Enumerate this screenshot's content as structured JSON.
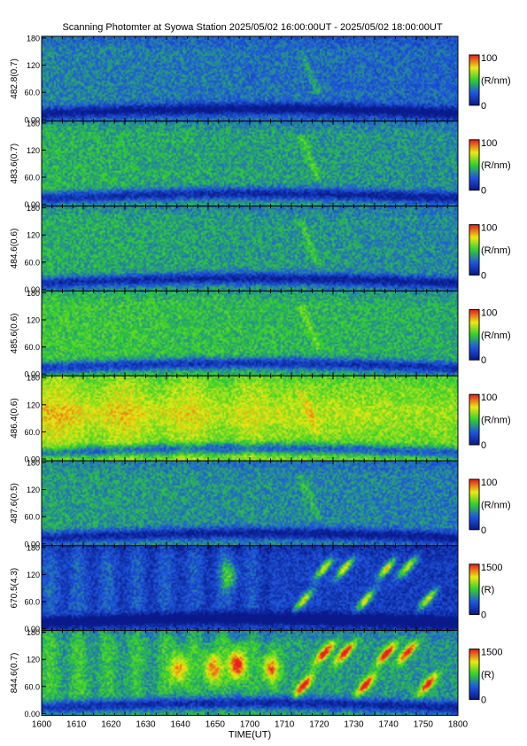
{
  "title": "Scanning Photomter at Syowa Station 2025/05/02 16:00:00UT - 2025/05/02 18:00:00UT",
  "colors": {
    "colormap": [
      "#0a1a8c",
      "#1f58e0",
      "#2fd02f",
      "#eaea10",
      "#e81e1e",
      "#ffffff"
    ],
    "axis": "#000000"
  },
  "chart_data": {
    "type": "heatmap",
    "xlabel": "TIME(UT)",
    "xlim": [
      1600,
      1800
    ],
    "xticks": [
      "1600",
      "1610",
      "1620",
      "1630",
      "1640",
      "1650",
      "1700",
      "1710",
      "1720",
      "1730",
      "1740",
      "1750",
      "1800"
    ],
    "yticks": [
      "0.00",
      "60.0",
      "120",
      "180"
    ],
    "ylim": [
      0,
      180
    ],
    "panels": [
      {
        "ylabel": "482.8(0.7)",
        "unit": "(R/nm)",
        "cmax": "100",
        "cmin": "0",
        "base": 0.34,
        "profile": "mid"
      },
      {
        "ylabel": "483.6(0.7)",
        "unit": "(R/nm)",
        "cmax": "100",
        "cmin": "0",
        "base": 0.44,
        "profile": "mid"
      },
      {
        "ylabel": "484.6(0.6)",
        "unit": "(R/nm)",
        "cmax": "100",
        "cmin": "0",
        "base": 0.43,
        "profile": "mid"
      },
      {
        "ylabel": "485.6(0.6)",
        "unit": "(R/nm)",
        "cmax": "100",
        "cmin": "0",
        "base": 0.5,
        "profile": "mid"
      },
      {
        "ylabel": "486.4(0.6)",
        "unit": "(R/nm)",
        "cmax": "100",
        "cmin": "0",
        "base": 0.66,
        "profile": "band"
      },
      {
        "ylabel": "487.6(0.5)",
        "unit": "(R/nm)",
        "cmax": "100",
        "cmin": "0",
        "base": 0.4,
        "profile": "mid"
      },
      {
        "ylabel": "670.5(4.3)",
        "unit": "(R)",
        "cmax": "1500",
        "cmin": "0",
        "base": 0.26,
        "profile": "aurora"
      },
      {
        "ylabel": "844.6(0.7)",
        "unit": "(R)",
        "cmax": "1500",
        "cmin": "0",
        "base": 0.45,
        "profile": "aurora-strong"
      }
    ]
  }
}
